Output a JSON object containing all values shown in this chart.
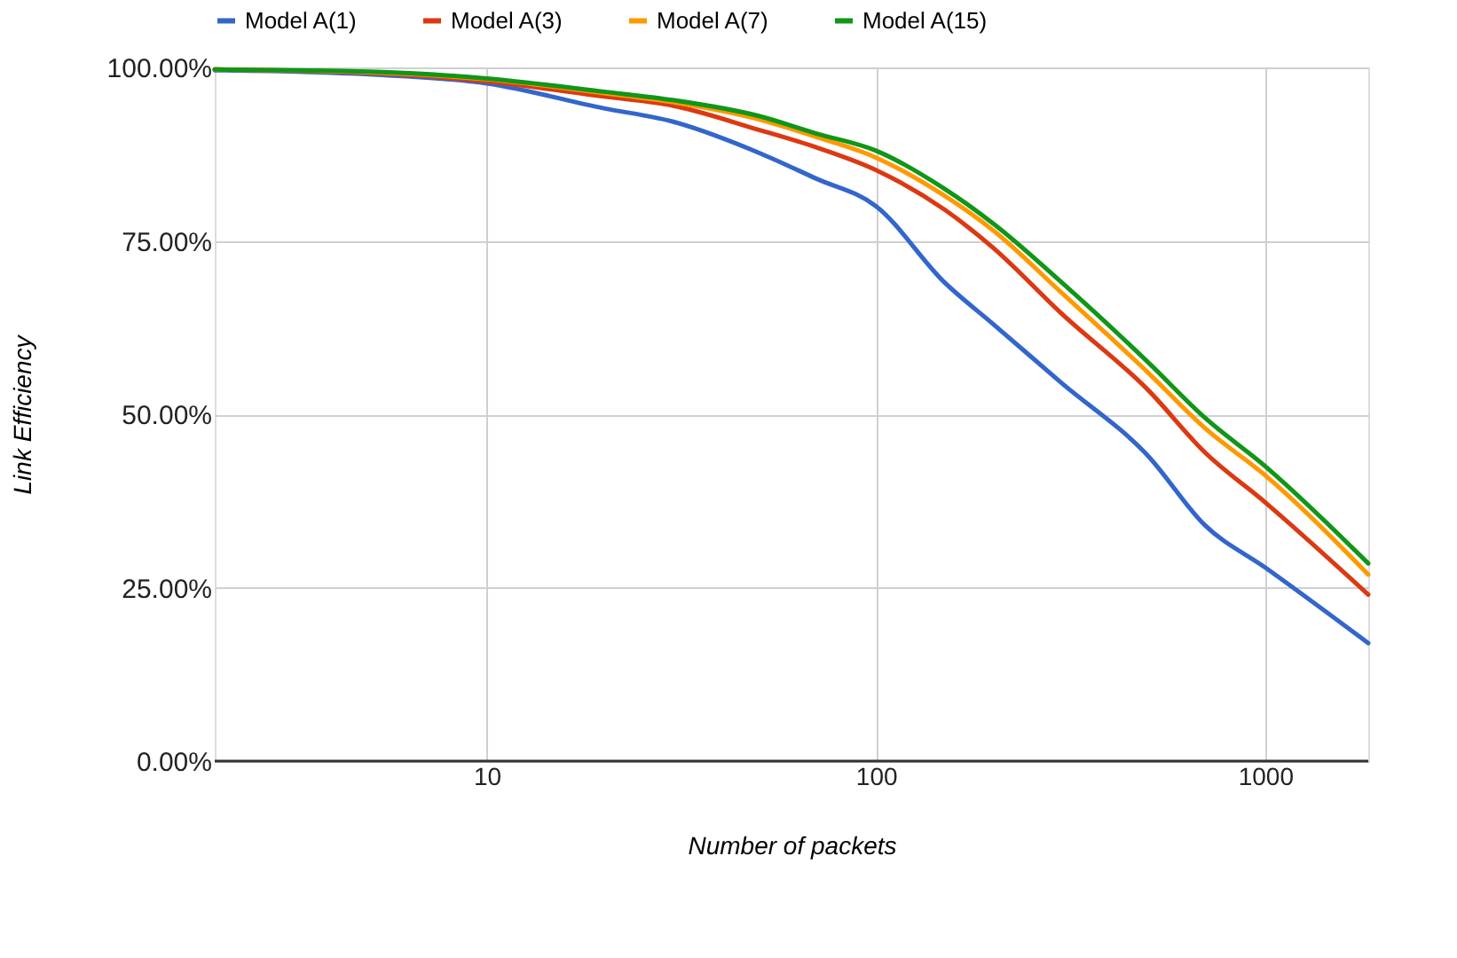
{
  "chart_data": {
    "type": "line",
    "xlabel": "Number of packets",
    "ylabel": "Link Efficiency",
    "log": "x",
    "grid": true,
    "legend": "top",
    "marker": "none",
    "line_style": "solid",
    "x": [
      2,
      5,
      10,
      20,
      30,
      50,
      70,
      100,
      150,
      200,
      300,
      500,
      700,
      1000,
      1840
    ],
    "xlim": [
      2,
      1840
    ],
    "xticks": [
      10,
      100,
      1000
    ],
    "ylim": [
      0,
      100
    ],
    "yticks": [
      {
        "value": 0,
        "label": "0.00%"
      },
      {
        "value": 25,
        "label": "25.00%"
      },
      {
        "value": 50,
        "label": "50.00%"
      },
      {
        "value": 75,
        "label": "75.00%"
      },
      {
        "value": 100,
        "label": "100.00%"
      }
    ],
    "series": [
      {
        "name": "Model A(1)",
        "color": "#3366cc",
        "values": [
          99.6,
          99,
          97.7,
          94.1,
          92.2,
          87.7,
          84,
          80,
          69,
          63,
          54.5,
          44,
          34,
          27.9,
          17
        ]
      },
      {
        "name": "Model A(3)",
        "color": "#dc3912",
        "values": [
          99.7,
          99.2,
          98,
          95.8,
          94.5,
          91,
          88.5,
          85.2,
          79.5,
          74,
          64.5,
          53.5,
          44.5,
          37.3,
          24
        ]
      },
      {
        "name": "Model A(7)",
        "color": "#ff9900",
        "values": [
          99.7,
          99.3,
          98.3,
          96.3,
          95,
          92.5,
          90,
          87,
          81.5,
          76.5,
          67.5,
          56,
          48,
          41.2,
          26.9
        ]
      },
      {
        "name": "Model A(15)",
        "color": "#109618",
        "values": [
          99.7,
          99.4,
          98.4,
          96.5,
          95.3,
          93,
          90.5,
          88,
          82.5,
          77.5,
          69,
          57.5,
          49.5,
          42.5,
          28.5
        ]
      }
    ]
  }
}
